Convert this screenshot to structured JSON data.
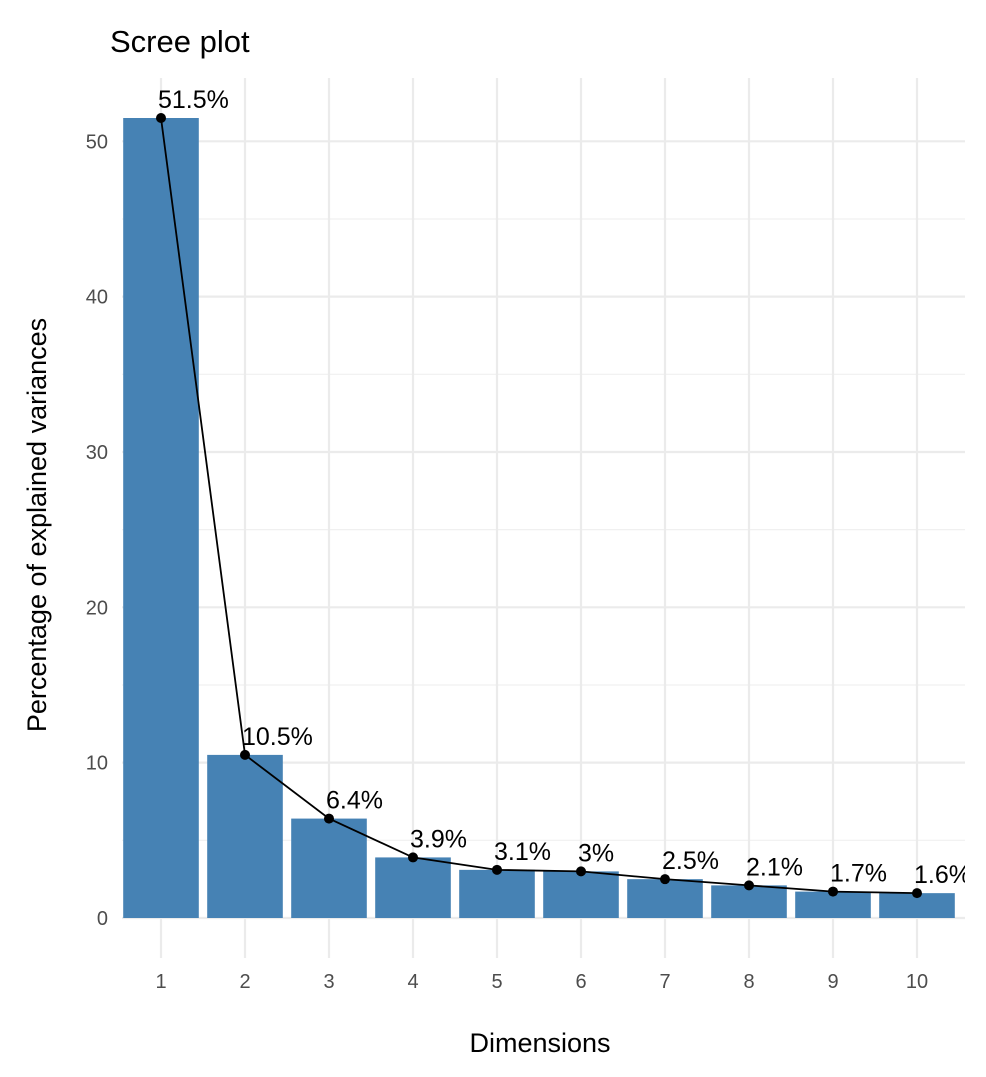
{
  "chart_data": {
    "type": "bar",
    "title": "Scree plot",
    "x_label": "Dimensions",
    "y_label": "Percentage of explained variances",
    "categories": [
      "1",
      "2",
      "3",
      "4",
      "5",
      "6",
      "7",
      "8",
      "9",
      "10"
    ],
    "values": [
      51.5,
      10.5,
      6.4,
      3.9,
      3.1,
      3,
      2.5,
      2.1,
      1.7,
      1.6
    ],
    "value_labels": [
      "51.5%",
      "10.5%",
      "6.4%",
      "3.9%",
      "3.1%",
      "3%",
      "2.5%",
      "2.1%",
      "1.7%",
      "1.6%"
    ],
    "color": "#4682b4",
    "line_color": "#000000",
    "ylim": [
      -2.575,
      54.075
    ],
    "yticks": [
      0,
      10,
      20,
      30,
      40,
      50
    ],
    "yminorticks": [
      5,
      15,
      25,
      35,
      45
    ],
    "grid": true
  }
}
